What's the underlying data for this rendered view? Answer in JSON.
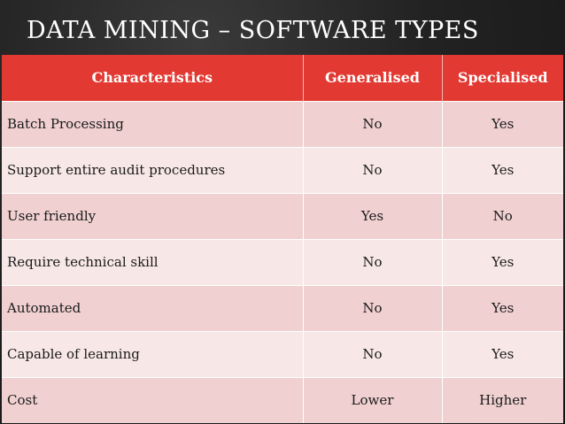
{
  "slide": {
    "title": "DATA MINING – SOFTWARE TYPES"
  },
  "table": {
    "headers": [
      "Characteristics",
      "Generalised",
      "Specialised"
    ],
    "rows": [
      [
        "Batch Processing",
        "No",
        "Yes"
      ],
      [
        "Support entire audit procedures",
        "No",
        "Yes"
      ],
      [
        "User friendly",
        "Yes",
        "No"
      ],
      [
        "Require technical skill",
        "No",
        "Yes"
      ],
      [
        "Automated",
        "No",
        "Yes"
      ],
      [
        "Capable of learning",
        "No",
        "Yes"
      ],
      [
        "Cost",
        "Lower",
        "Higher"
      ]
    ]
  },
  "colors": {
    "header_background": "#e23a33",
    "row_odd": "#f0d0d0",
    "row_even": "#f8e7e7",
    "slide_background": "#1b1b1b"
  }
}
